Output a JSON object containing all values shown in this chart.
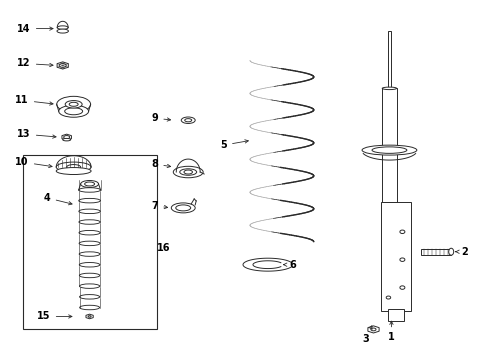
{
  "bg_color": "#ffffff",
  "line_color": "#2a2a2a",
  "text_color": "#000000",
  "fig_width": 4.89,
  "fig_height": 3.6,
  "dpi": 100,
  "xlim": [
    0,
    4.89
  ],
  "ylim": [
    0,
    3.6
  ]
}
